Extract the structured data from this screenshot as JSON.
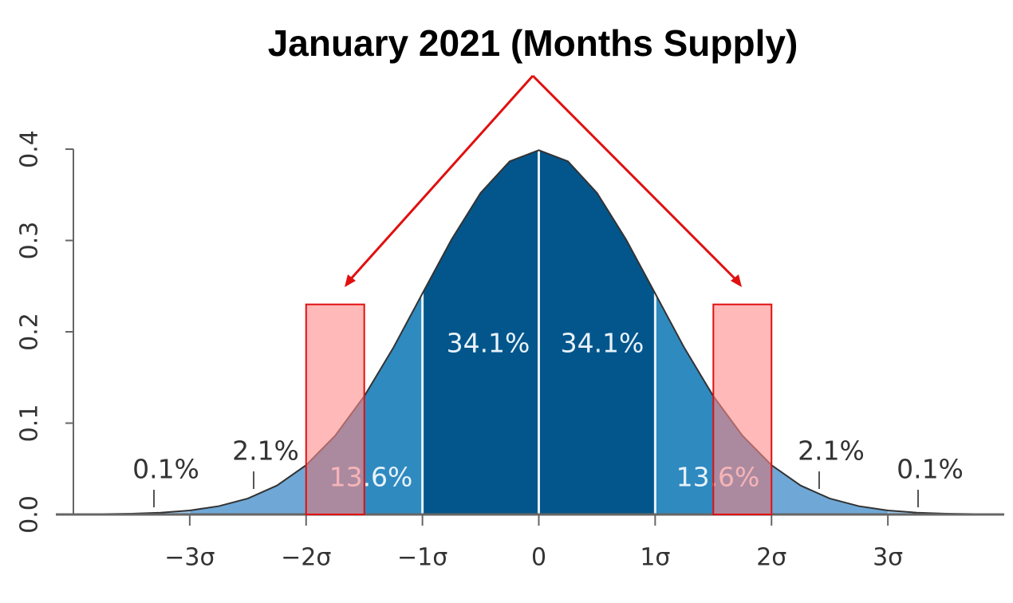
{
  "chart_data": {
    "type": "area",
    "title": "January 2021 (Months Supply)",
    "x": [
      -4,
      -3.75,
      -3.5,
      -3.25,
      -3,
      -2.75,
      -2.5,
      -2.25,
      -2,
      -1.75,
      -1.5,
      -1.25,
      -1,
      -0.75,
      -0.5,
      -0.25,
      0,
      0.25,
      0.5,
      0.75,
      1,
      1.25,
      1.5,
      1.75,
      2,
      2.25,
      2.5,
      2.75,
      3,
      3.25,
      3.5,
      3.75,
      4
    ],
    "values": [
      0.0001,
      0.0004,
      0.0009,
      0.002,
      0.0044,
      0.0091,
      0.0175,
      0.0317,
      0.054,
      0.0863,
      0.1295,
      0.1826,
      0.242,
      0.3011,
      0.3521,
      0.3867,
      0.3989,
      0.3867,
      0.3521,
      0.3011,
      0.242,
      0.1826,
      0.1295,
      0.0863,
      0.054,
      0.0317,
      0.0175,
      0.0091,
      0.0044,
      0.002,
      0.0009,
      0.0004,
      0.0001
    ],
    "band_edges": [
      -4,
      -3,
      -2,
      -1,
      0,
      1,
      2,
      3,
      4
    ],
    "band_colors": [
      "#9cc4e4",
      "#6fa8d6",
      "#2f8ac0",
      "#03568b",
      "#03568b",
      "#2f8ac0",
      "#6fa8d6",
      "#9cc4e4"
    ],
    "band_percents": [
      0.1,
      2.1,
      13.6,
      34.1,
      34.1,
      13.6,
      2.1,
      0.1
    ],
    "band_percent_labels": [
      "0.1%",
      "2.1%",
      "13.6%",
      "34.1%",
      "34.1%",
      "13.6%",
      "2.1%",
      "0.1%"
    ],
    "highlights": [
      {
        "from": -2,
        "to": -1.5,
        "top": 0.23
      },
      {
        "from": 1.5,
        "to": 2,
        "top": 0.23
      }
    ],
    "highlight_color": "#ff8a8a",
    "xlim": [
      -4,
      4
    ],
    "ylim": [
      0,
      0.4
    ],
    "xticks": [
      {
        "value": -3,
        "label": "−3σ"
      },
      {
        "value": -2,
        "label": "−2σ"
      },
      {
        "value": -1,
        "label": "−1σ"
      },
      0,
      {
        "value": 1,
        "label": "1σ"
      },
      {
        "value": 2,
        "label": "2σ"
      },
      {
        "value": 3,
        "label": "3σ"
      }
    ],
    "yticks": [
      {
        "value": 0,
        "label": "0.0"
      },
      0.1,
      0.2,
      0.3,
      0.4
    ]
  }
}
